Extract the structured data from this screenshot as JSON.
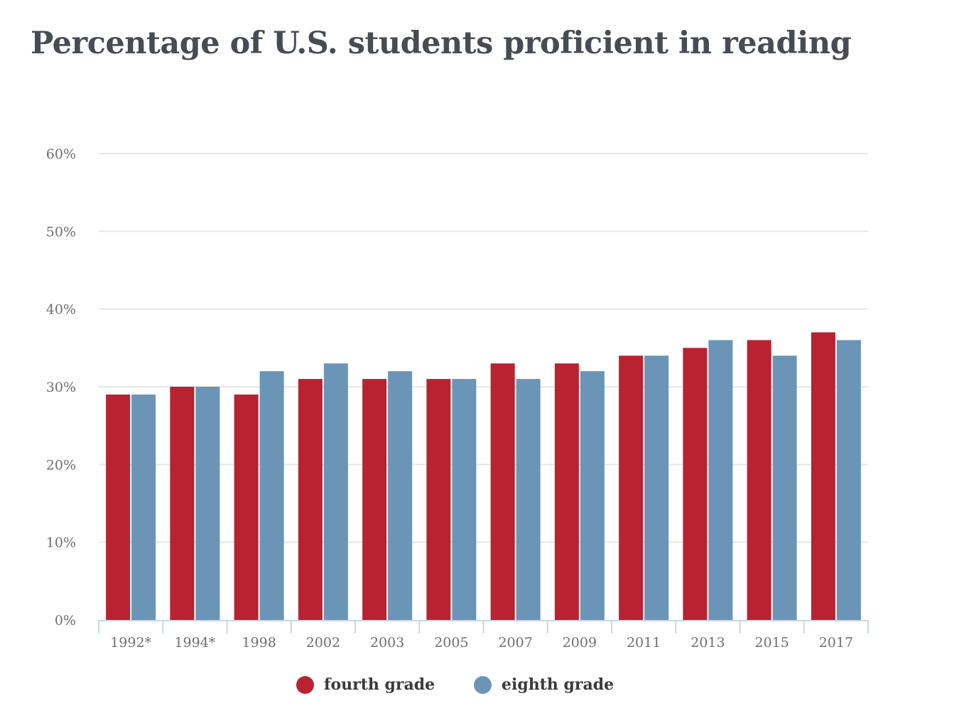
{
  "chart_data": {
    "type": "bar",
    "title": "Percentage of U.S. students proficient in reading",
    "xlabel": "",
    "ylabel": "",
    "categories": [
      "1992*",
      "1994*",
      "1998",
      "2002",
      "2003",
      "2005",
      "2007",
      "2009",
      "2011",
      "2013",
      "2015",
      "2017"
    ],
    "series": [
      {
        "name": "fourth grade",
        "color": "#b82231",
        "values": [
          29,
          30,
          29,
          31,
          31,
          31,
          33,
          33,
          34,
          35,
          36,
          37
        ]
      },
      {
        "name": "eighth grade",
        "color": "#6a95b7",
        "values": [
          29,
          30,
          32,
          33,
          32,
          31,
          31,
          32,
          34,
          36,
          34,
          36
        ]
      }
    ],
    "ylim": [
      0,
      60
    ],
    "yticks": [
      0,
      10,
      20,
      30,
      40,
      50,
      60
    ],
    "ytick_labels": [
      "0%",
      "10%",
      "20%",
      "30%",
      "40%",
      "50%",
      "60%"
    ],
    "grid": true,
    "legend_position": "bottom-center"
  },
  "colors": {
    "title": "#474c54",
    "gridline": "#e6e6e6",
    "axis": "#c9d6e6",
    "tick_text": "#6f6f6f"
  }
}
